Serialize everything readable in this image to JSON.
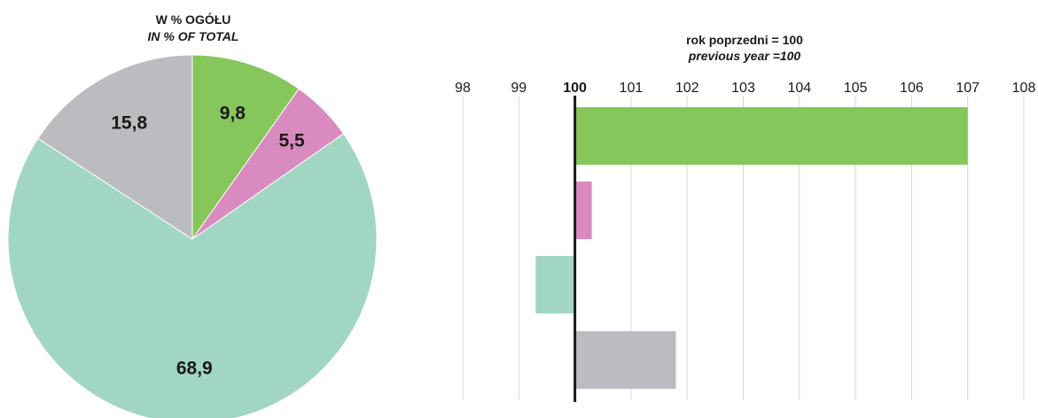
{
  "chart_data": [
    {
      "type": "pie",
      "title": "W % OGÓŁU",
      "subtitle": "IN % OF TOTAL",
      "start_angle_deg": 0,
      "direction": "clockwise",
      "slices": [
        {
          "label": "9,8",
          "value": 9.8,
          "color": "#86c65b"
        },
        {
          "label": "5,5",
          "value": 5.5,
          "color": "#d98bbf"
        },
        {
          "label": "68,9",
          "value": 68.9,
          "color": "#a1d6c3"
        },
        {
          "label": "15,8",
          "value": 15.8,
          "color": "#bbbcbf"
        }
      ]
    },
    {
      "type": "bar",
      "orientation": "horizontal",
      "title": "rok poprzedni = 100",
      "subtitle": "previous year =100",
      "base_value": 100,
      "xlim": [
        98,
        108
      ],
      "ticks": [
        "98",
        "99",
        "100",
        "101",
        "102",
        "103",
        "104",
        "105",
        "106",
        "107",
        "108"
      ],
      "grid": true,
      "values": [
        107.0,
        100.3,
        99.3,
        101.8
      ],
      "colors": [
        "#86c65b",
        "#d98bbf",
        "#a1d6c3",
        "#bbbcbf"
      ]
    }
  ]
}
